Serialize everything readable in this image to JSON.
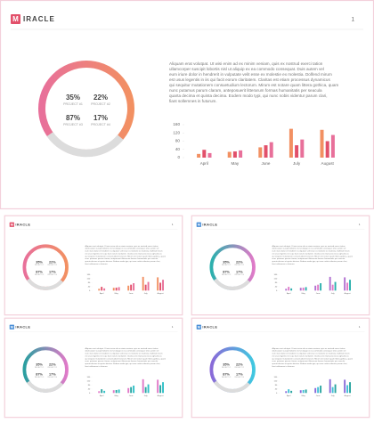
{
  "brand": {
    "initial": "M",
    "name": "IRACLE"
  },
  "page_number": "1",
  "stats": [
    {
      "value": "35%",
      "label": "PROJECT #1"
    },
    {
      "value": "22%",
      "label": "PROJECT #2"
    },
    {
      "value": "87%",
      "label": "PROJECT #3"
    },
    {
      "value": "17%",
      "label": "PROJECT #4"
    }
  ],
  "paragraph_lines": [
    "Aliquam erat volutpat. Ut wisi enim ad ex minim veniam, quis ex nostrud exerci tation",
    "ullamcorper suscipit lobortis nisl ut aliquip ex ea commodo consequat. Duis autem vel",
    "eum iriure dolor in hendrerit in vulputate velit esse ex molestie ex molestia. Dolfend mirum",
    "est usus legentis in iis qui facit eorum claritatem. Claritas est etiam processus dynamicus",
    "qui sequitur mutationem consuetudium lectorum. Mirum est notare quam littera gothica, quam",
    "nunc putamus parum claram, anteposuerit litterarum formas humanitatis per seacula",
    "quarta decima et quinta decima. Eodem modo typi, qui nunc nobis videntur parum clari,",
    "fiant sollemnes in futurum."
  ],
  "chart_data": {
    "type": "bar",
    "categories": [
      "April",
      "May",
      "June",
      "July",
      "August"
    ],
    "series": [
      {
        "color": "#f29062",
        "values": [
          18,
          28,
          50,
          140,
          135
        ]
      },
      {
        "color": "#e2506a",
        "values": [
          38,
          30,
          60,
          60,
          80
        ]
      },
      {
        "color": "#e8709a",
        "values": [
          22,
          35,
          75,
          88,
          110
        ]
      }
    ],
    "ylim": [
      0,
      160
    ],
    "yticks": [
      0,
      40,
      80,
      120,
      160
    ]
  },
  "themes": [
    {
      "logo": "#e2506a",
      "ring": [
        "#e8709a",
        "#f29062"
      ]
    },
    {
      "logo": "#4a8fd8",
      "ring": [
        "#2bb0ad",
        "#e07ac8"
      ],
      "bars": [
        "#b070d0",
        "#e07ac8",
        "#2bb0ad"
      ]
    },
    {
      "logo": "#4a8fd8",
      "ring": [
        "#2a9fa0",
        "#e07ac8"
      ],
      "bars": [
        "#e07ac8",
        "#2aa5a0",
        "#30c0c8"
      ]
    },
    {
      "logo": "#4a8fd8",
      "ring": [
        "#8a6ad8",
        "#40c8e0"
      ],
      "bars": [
        "#8a6ad8",
        "#40c0d8",
        "#2aa5a0"
      ]
    }
  ]
}
